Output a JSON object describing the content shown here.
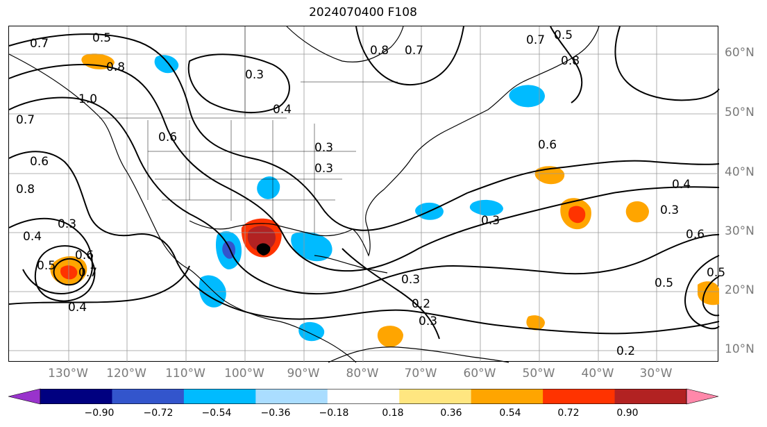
{
  "title": "2024070400 F108",
  "latitude_labels": [
    "60°N",
    "50°N",
    "40°N",
    "30°N",
    "20°N",
    "10°N"
  ],
  "longitude_labels": [
    "130°W",
    "120°W",
    "110°W",
    "100°W",
    "90°W",
    "80°W",
    "70°W",
    "60°W",
    "50°W",
    "40°W",
    "30°W"
  ],
  "colorbar": {
    "ticks": [
      "−0.90",
      "−0.72",
      "−0.54",
      "−0.36",
      "−0.18",
      "0.18",
      "0.36",
      "0.54",
      "0.72",
      "0.90"
    ],
    "colors": [
      "#9933cc",
      "#000080",
      "#3355cc",
      "#00bbff",
      "#aaddff",
      "#ffffff",
      "#ffe680",
      "#ffa500",
      "#ff3300",
      "#b22222",
      "#ff88aa"
    ]
  },
  "contour_labels": [
    "0.7",
    "0.5",
    "0.8",
    "1.0",
    "0.7",
    "0.6",
    "0.8",
    "0.3",
    "0.4",
    "0.6",
    "0.3",
    "0.4",
    "0.5",
    "0.6",
    "0.7",
    "0.4",
    "0.3",
    "0.3",
    "0.3",
    "0.3",
    "0.2",
    "0.3",
    "0.8",
    "0.7",
    "0.5",
    "0.7",
    "0.8",
    "0.6",
    "0.4",
    "0.3",
    "0.6",
    "0.5",
    "0.5",
    "0.2"
  ],
  "colors": {
    "positive": [
      "#ffe680",
      "#ffa500",
      "#ff3300",
      "#b22222"
    ],
    "negative": [
      "#aaddff",
      "#00bbff",
      "#3355cc",
      "#000080"
    ]
  }
}
